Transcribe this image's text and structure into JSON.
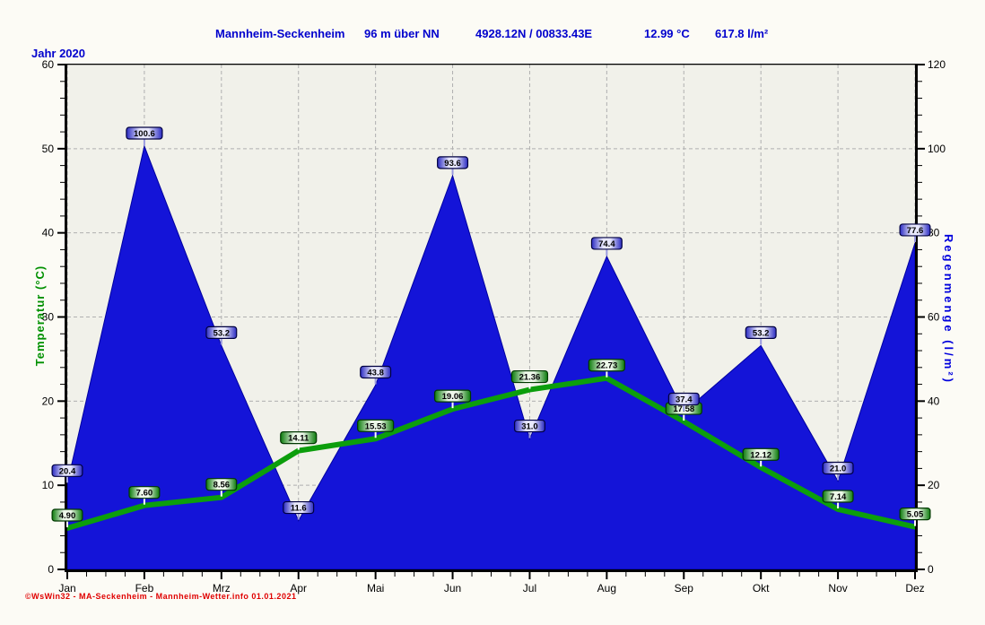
{
  "header": {
    "station": "Mannheim-Seckenheim",
    "elevation": "96 m über NN",
    "coordinates": "4928.12N / 00833.43E",
    "mean_temperature": "12.99 °C",
    "total_rain": "617.8 l/m²"
  },
  "year_label": "Jahr 2020",
  "footer_credit": "©WsWin32 - MA-Seckenheim - Mannheim-Wetter.info  01.01.2021",
  "chart_data": {
    "type": "area+line",
    "categories": [
      "Jan",
      "Feb",
      "Mrz",
      "Apr",
      "Mai",
      "Jun",
      "Jul",
      "Aug",
      "Sep",
      "Okt",
      "Nov",
      "Dez"
    ],
    "series": [
      {
        "name": "Regenmenge",
        "unit": "l/m²",
        "axis": "right",
        "type": "area",
        "color": "#1414d8",
        "values": [
          20.4,
          100.6,
          53.2,
          11.6,
          43.8,
          93.6,
          31.0,
          74.4,
          37.4,
          53.2,
          21.0,
          77.6
        ],
        "labels": [
          "20.4",
          "100.6",
          "53.2",
          "11.6",
          "43.8",
          "93.6",
          "31.0",
          "74.4",
          "37.4",
          "53.2",
          "21.0",
          "77.6"
        ]
      },
      {
        "name": "Temperatur",
        "unit": "°C",
        "axis": "left",
        "type": "line",
        "color": "#0c9e0c",
        "values": [
          4.9,
          7.6,
          8.56,
          14.11,
          15.53,
          19.06,
          21.36,
          22.73,
          17.58,
          12.12,
          7.14,
          5.05
        ],
        "labels": [
          "4.90",
          "7.60",
          "8.56",
          "14.11",
          "15.53",
          "19.06",
          "21.36",
          "22.73",
          "17.58",
          "12.12",
          "7.14",
          "5.05"
        ]
      }
    ],
    "left_axis": {
      "title": "Temperatur  (°C)",
      "min": 0,
      "max": 60,
      "step": 10,
      "ticks": [
        0,
        10,
        20,
        30,
        40,
        50,
        60
      ],
      "minor_step": 2,
      "color": "#009000"
    },
    "right_axis": {
      "title": "Regenmenge  (l/m²)",
      "min": 0,
      "max": 120,
      "step": 20,
      "ticks": [
        0,
        20,
        40,
        60,
        80,
        100,
        120
      ],
      "minor_step": 4,
      "color": "#0000dd"
    },
    "grid": true,
    "legend_position": "none"
  },
  "colors": {
    "header_text": "#0000cd",
    "area_fill": "#1414d8",
    "line_stroke": "#0c9e0c",
    "plot_background": "#f1f1ea",
    "page_background": "#fcfbf5",
    "grid": "#b0b0b0",
    "footer_text": "#e00000"
  }
}
